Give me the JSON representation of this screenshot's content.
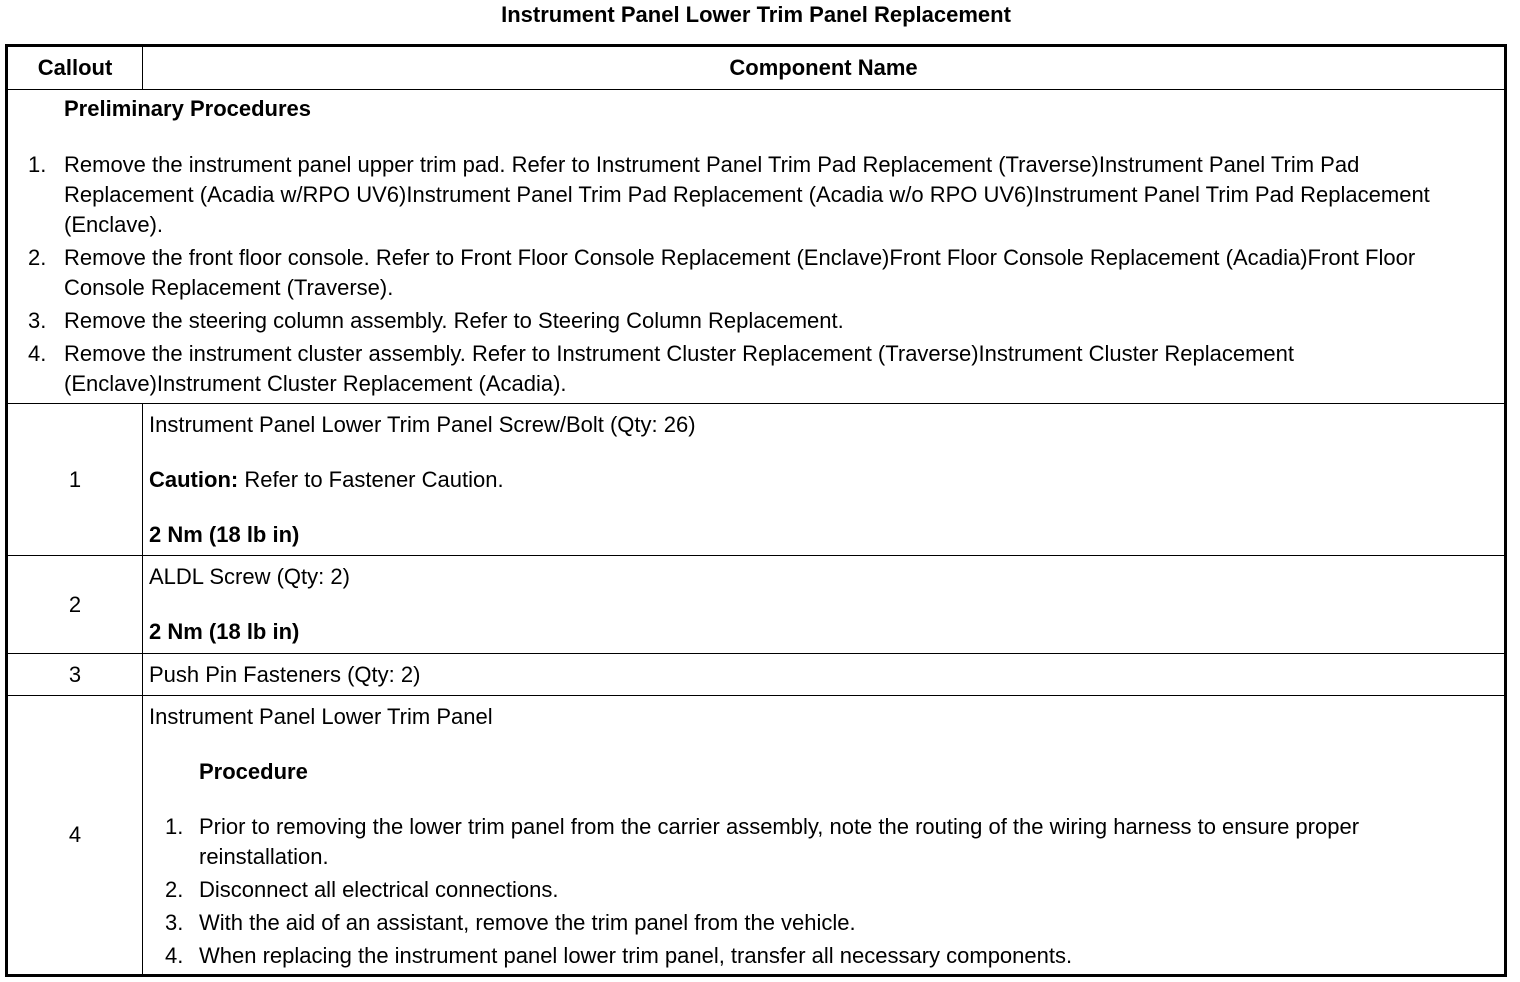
{
  "title": "Instrument Panel Lower Trim Panel Replacement",
  "headers": {
    "callout": "Callout",
    "component": "Component Name"
  },
  "preliminary": {
    "heading": "Preliminary Procedures",
    "steps": [
      {
        "n": "1.",
        "text": "Remove the instrument panel upper trim pad. Refer to Instrument Panel Trim Pad Replacement (Traverse)Instrument Panel Trim Pad Replacement (Acadia w/RPO UV6)Instrument Panel Trim Pad Replacement (Acadia w/o RPO UV6)Instrument Panel Trim Pad Replacement (Enclave)."
      },
      {
        "n": "2.",
        "text": "Remove the front floor console. Refer to Front Floor Console Replacement (Enclave)Front Floor Console Replacement (Acadia)Front Floor Console Replacement (Traverse)."
      },
      {
        "n": "3.",
        "text": "Remove the steering column assembly. Refer to Steering Column Replacement."
      },
      {
        "n": "4.",
        "text": "Remove the instrument cluster assembly. Refer to Instrument Cluster Replacement (Traverse)Instrument Cluster Replacement (Enclave)Instrument Cluster Replacement (Acadia)."
      }
    ]
  },
  "rows": [
    {
      "callout": "1",
      "name": "Instrument Panel Lower Trim Panel Screw/Bolt (Qty: 26)",
      "caution_label": "Caution:",
      "caution_text": " Refer to Fastener Caution.",
      "torque": "2 Nm (18 lb in)"
    },
    {
      "callout": "2",
      "name": "ALDL Screw (Qty: 2)",
      "torque": "2 Nm (18 lb in)"
    },
    {
      "callout": "3",
      "name": "Push Pin Fasteners (Qty: 2)"
    },
    {
      "callout": "4",
      "name": "Instrument Panel Lower Trim Panel",
      "procedure_heading": "Procedure",
      "steps": [
        {
          "n": "1.",
          "text": "Prior to removing the lower trim panel from the carrier assembly, note the routing of the wiring harness to ensure proper reinstallation."
        },
        {
          "n": "2.",
          "text": "Disconnect all electrical connections."
        },
        {
          "n": "3.",
          "text": "With the aid of an assistant, remove the trim panel from the vehicle."
        },
        {
          "n": "4.",
          "text": "When replacing the instrument panel lower trim panel, transfer all necessary components."
        }
      ]
    }
  ]
}
